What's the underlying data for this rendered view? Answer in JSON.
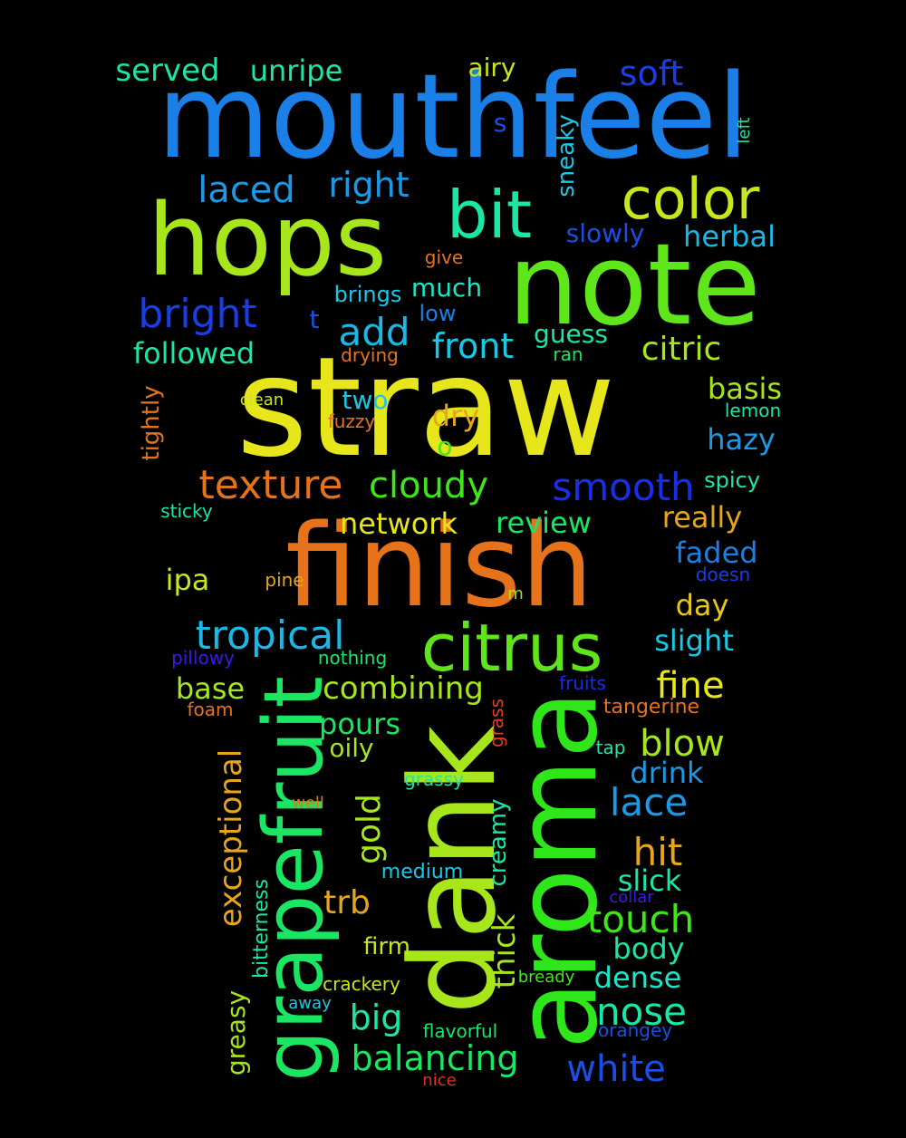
{
  "words": [
    {
      "text": "mouthfeel",
      "color": "#1a7fe6",
      "rotated": false
    },
    {
      "text": "straw",
      "color": "#e6e61a",
      "rotated": false
    },
    {
      "text": "finish",
      "color": "#e6731a",
      "rotated": false
    },
    {
      "text": "note",
      "color": "#5ee61a",
      "rotated": false
    },
    {
      "text": "hops",
      "color": "#a6e61a",
      "rotated": false
    },
    {
      "text": "dank",
      "color": "#a6e61a",
      "rotated": true
    },
    {
      "text": "aroma",
      "color": "#2ee61a",
      "rotated": true
    },
    {
      "text": "citrus",
      "color": "#5ee61a",
      "rotated": false
    },
    {
      "text": "grapefruit",
      "color": "#1ae663",
      "rotated": true
    },
    {
      "text": "bit",
      "color": "#1ae6a6",
      "rotated": false
    },
    {
      "text": "color",
      "color": "#c8e61a",
      "rotated": false
    },
    {
      "text": "tropical",
      "color": "#1ab8e6",
      "rotated": false
    },
    {
      "text": "texture",
      "color": "#e6731a",
      "rotated": false
    },
    {
      "text": "bright",
      "color": "#1a3ee6",
      "rotated": false
    },
    {
      "text": "smooth",
      "color": "#1a2ee6",
      "rotated": false
    },
    {
      "text": "cloudy",
      "color": "#3ee61a",
      "rotated": false
    },
    {
      "text": "add",
      "color": "#1ab8e6",
      "rotated": false
    },
    {
      "text": "laced",
      "color": "#1a9ae6",
      "rotated": false
    },
    {
      "text": "right",
      "color": "#1a9ae6",
      "rotated": false
    },
    {
      "text": "front",
      "color": "#1ac8e6",
      "rotated": false
    },
    {
      "text": "citric",
      "color": "#a6e61a",
      "rotated": false
    },
    {
      "text": "soft",
      "color": "#1a3ee6",
      "rotated": false
    },
    {
      "text": "served",
      "color": "#1ae6a6",
      "rotated": false
    },
    {
      "text": "unripe",
      "color": "#1ae6a6",
      "rotated": false
    },
    {
      "text": "airy",
      "color": "#c8e61a",
      "rotated": false
    },
    {
      "text": "herbal",
      "color": "#1ab8e6",
      "rotated": false
    },
    {
      "text": "followed",
      "color": "#1ae6a6",
      "rotated": false
    },
    {
      "text": "basis",
      "color": "#a6e61a",
      "rotated": false
    },
    {
      "text": "hazy",
      "color": "#1a9ae6",
      "rotated": false
    },
    {
      "text": "network",
      "color": "#e6e61a",
      "rotated": false
    },
    {
      "text": "review",
      "color": "#1ae663",
      "rotated": false
    },
    {
      "text": "really",
      "color": "#e6a61a",
      "rotated": false
    },
    {
      "text": "faded",
      "color": "#1a7fe6",
      "rotated": false
    },
    {
      "text": "day",
      "color": "#e6c81a",
      "rotated": false
    },
    {
      "text": "slight",
      "color": "#1ac8e6",
      "rotated": false
    },
    {
      "text": "fine",
      "color": "#e6e61a",
      "rotated": false
    },
    {
      "text": "blow",
      "color": "#a6e61a",
      "rotated": false
    },
    {
      "text": "drink",
      "color": "#1a9ae6",
      "rotated": false
    },
    {
      "text": "lace",
      "color": "#1a9ae6",
      "rotated": false
    },
    {
      "text": "hit",
      "color": "#e6a61a",
      "rotated": false
    },
    {
      "text": "slick",
      "color": "#1ae6a6",
      "rotated": false
    },
    {
      "text": "touch",
      "color": "#3ee61a",
      "rotated": false
    },
    {
      "text": "body",
      "color": "#1ae6a6",
      "rotated": false
    },
    {
      "text": "dense",
      "color": "#1ae6c8",
      "rotated": false
    },
    {
      "text": "nose",
      "color": "#1ae6a6",
      "rotated": false
    },
    {
      "text": "white",
      "color": "#1a4fe6",
      "rotated": false
    },
    {
      "text": "balancing",
      "color": "#1ae663",
      "rotated": false
    },
    {
      "text": "big",
      "color": "#1ae6a6",
      "rotated": false
    },
    {
      "text": "combining",
      "color": "#a6e61a",
      "rotated": false
    },
    {
      "text": "pours",
      "color": "#1ae663",
      "rotated": false
    },
    {
      "text": "oily",
      "color": "#a6e61a",
      "rotated": false
    },
    {
      "text": "base",
      "color": "#a6e61a",
      "rotated": false
    },
    {
      "text": "ipa",
      "color": "#c8e61a",
      "rotated": false
    },
    {
      "text": "trb",
      "color": "#e6a61a",
      "rotated": false
    },
    {
      "text": "firm",
      "color": "#c8e61a",
      "rotated": false
    },
    {
      "text": "dry",
      "color": "#e6a61a",
      "rotated": false
    },
    {
      "text": "two",
      "color": "#1ac8e6",
      "rotated": false
    },
    {
      "text": "guess",
      "color": "#1ae6a6",
      "rotated": false
    },
    {
      "text": "much",
      "color": "#1ae6c8",
      "rotated": false
    },
    {
      "text": "brings",
      "color": "#1ac8e6",
      "rotated": false
    },
    {
      "text": "slowly",
      "color": "#1a4fe6",
      "rotated": false
    },
    {
      "text": "exceptional",
      "color": "#e6a61a",
      "rotated": true
    },
    {
      "text": "gold",
      "color": "#a6e61a",
      "rotated": true
    },
    {
      "text": "greasy",
      "color": "#a6e61a",
      "rotated": true
    },
    {
      "text": "tightly",
      "color": "#e6731a",
      "rotated": true
    },
    {
      "text": "sneaky",
      "color": "#1ac8e6",
      "rotated": true
    },
    {
      "text": "creamy",
      "color": "#1ae6a6",
      "rotated": true
    },
    {
      "text": "thick",
      "color": "#a6e61a",
      "rotated": true
    },
    {
      "text": "bitterness",
      "color": "#1ae6a6",
      "rotated": true
    },
    {
      "text": "grass",
      "color": "#e63e1a",
      "rotated": true
    },
    {
      "text": "left",
      "color": "#1ae6a6",
      "rotated": true
    },
    {
      "text": "s",
      "color": "#1a4fe6",
      "rotated": false
    },
    {
      "text": "t",
      "color": "#1a4fe6",
      "rotated": false
    },
    {
      "text": "o",
      "color": "#3ee61a",
      "rotated": false
    },
    {
      "text": "m",
      "color": "#a6e61a",
      "rotated": false
    },
    {
      "text": "give",
      "color": "#e6731a",
      "rotated": false
    },
    {
      "text": "low",
      "color": "#1a7fe6",
      "rotated": false
    },
    {
      "text": "ran",
      "color": "#1ae663",
      "rotated": false
    },
    {
      "text": "drying",
      "color": "#e6731a",
      "rotated": false
    },
    {
      "text": "clean",
      "color": "#c8e61a",
      "rotated": false
    },
    {
      "text": "fuzzy",
      "color": "#e6731a",
      "rotated": false
    },
    {
      "text": "lemon",
      "color": "#1ae6a6",
      "rotated": false
    },
    {
      "text": "spicy",
      "color": "#1ae6a6",
      "rotated": false
    },
    {
      "text": "sticky",
      "color": "#1ae6a6",
      "rotated": false
    },
    {
      "text": "doesn",
      "color": "#1a3ee6",
      "rotated": false
    },
    {
      "text": "pine",
      "color": "#e6a61a",
      "rotated": false
    },
    {
      "text": "pillowy",
      "color": "#3e1ae6",
      "rotated": false
    },
    {
      "text": "nothing",
      "color": "#1ae663",
      "rotated": false
    },
    {
      "text": "fruits",
      "color": "#1a2ee6",
      "rotated": false
    },
    {
      "text": "foam",
      "color": "#e6731a",
      "rotated": false
    },
    {
      "text": "tangerine",
      "color": "#e6731a",
      "rotated": false
    },
    {
      "text": "tap",
      "color": "#1ae6a6",
      "rotated": false
    },
    {
      "text": "grassy",
      "color": "#1ae6a6",
      "rotated": false
    },
    {
      "text": "well",
      "color": "#e6731a",
      "rotated": false
    },
    {
      "text": "medium",
      "color": "#1ac8e6",
      "rotated": false
    },
    {
      "text": "collar",
      "color": "#3e1ae6",
      "rotated": false
    },
    {
      "text": "crackery",
      "color": "#c8e61a",
      "rotated": false
    },
    {
      "text": "bready",
      "color": "#3ee61a",
      "rotated": false
    },
    {
      "text": "away",
      "color": "#1ac8e6",
      "rotated": false
    },
    {
      "text": "flavorful",
      "color": "#1ae663",
      "rotated": false
    },
    {
      "text": "orangey",
      "color": "#1a4fe6",
      "rotated": false
    },
    {
      "text": "nice",
      "color": "#e6311a",
      "rotated": false
    }
  ]
}
